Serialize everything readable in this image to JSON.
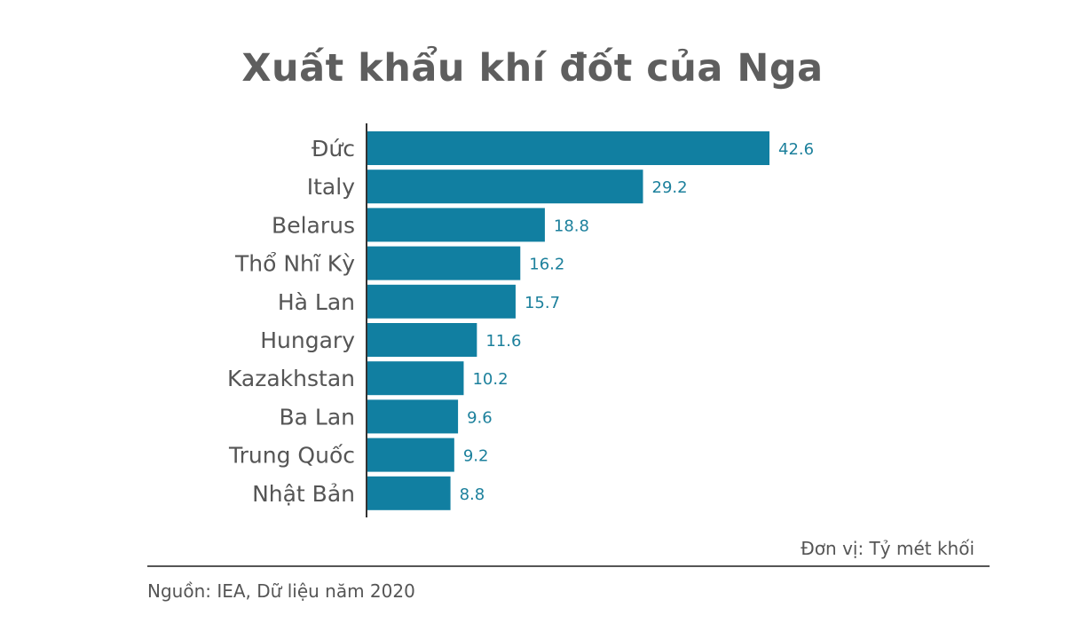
{
  "chart_data": {
    "type": "bar",
    "orientation": "horizontal",
    "title": "Xuất khẩu khí đốt của Nga",
    "categories": [
      "Đức",
      "Italy",
      "Belarus",
      "Thổ Nhĩ Kỳ",
      "Hà Lan",
      "Hungary",
      "Kazakhstan",
      "Ba Lan",
      "Trung Quốc",
      "Nhật Bản"
    ],
    "values": [
      42.6,
      29.2,
      18.8,
      16.2,
      15.7,
      11.6,
      10.2,
      9.6,
      9.2,
      8.8
    ],
    "value_labels": [
      "42.6",
      "29.2",
      "18.8",
      "16.2",
      "15.7",
      "11.6",
      "10.2",
      "9.6",
      "9.2",
      "8.8"
    ],
    "xlim": [
      0,
      42.6
    ],
    "grid": false,
    "bar_color": "#117fa1",
    "value_label_color": "#1c809c"
  },
  "unit_note": "Đơn vị: Tỷ mét khối",
  "source_note": "Nguồn: IEA, Dữ liệu năm 2020",
  "colors": {
    "title": "#5e5e5e",
    "text": "#555555",
    "axis": "#333333"
  }
}
